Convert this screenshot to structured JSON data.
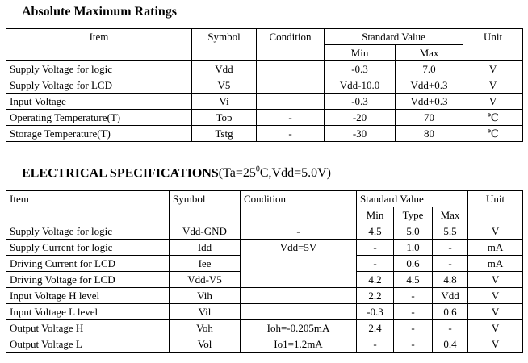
{
  "abs": {
    "title": "Absolute Maximum Ratings",
    "headers": {
      "item": "Item",
      "symbol": "Symbol",
      "condition": "Condition",
      "standard": "Standard Value",
      "min": "Min",
      "max": "Max",
      "unit": "Unit"
    },
    "rows": [
      {
        "item": "Supply Voltage for logic",
        "symbol": "Vdd",
        "condition": "",
        "min": "-0.3",
        "max": "7.0",
        "unit": "V"
      },
      {
        "item": "Supply Voltage for LCD",
        "symbol": "V5",
        "condition": "",
        "min": "Vdd-10.0",
        "max": "Vdd+0.3",
        "unit": "V"
      },
      {
        "item": "Input Voltage",
        "symbol": "Vi",
        "condition": "",
        "min": "-0.3",
        "max": "Vdd+0.3",
        "unit": "V"
      },
      {
        "item": "Operating Temperature(T)",
        "symbol": "Top",
        "condition": "-",
        "min": "-20",
        "max": "70",
        "unit": "℃"
      },
      {
        "item": "Storage Temperature(T)",
        "symbol": "Tstg",
        "condition": "-",
        "min": "-30",
        "max": "80",
        "unit": "℃"
      }
    ]
  },
  "elec": {
    "title": "ELECTRICAL SPECIFICATIONS",
    "title_suffix_a": "(Ta=25",
    "title_sup": "0",
    "title_suffix_b": "C,Vdd=5.0V)",
    "headers": {
      "item": "Item",
      "symbol": "Symbol",
      "condition": "Condition",
      "standard": "Standard Value",
      "min": "Min",
      "typ": "Type",
      "max": "Max",
      "unit": "Unit"
    },
    "rows": [
      {
        "item": "Supply Voltage for logic",
        "symbol": "Vdd-GND",
        "condition": "-",
        "min": "4.5",
        "typ": "5.0",
        "max": "5.5",
        "unit": "V"
      },
      {
        "item": "Supply Current for logic",
        "symbol": "Idd",
        "condition": "Vdd=5V",
        "min": "-",
        "typ": "1.0",
        "max": "-",
        "unit": "mA"
      },
      {
        "item": "Driving Current for LCD",
        "symbol": "Iee",
        "condition": "",
        "min": "-",
        "typ": "0.6",
        "max": "-",
        "unit": "mA"
      },
      {
        "item": "Driving Voltage for LCD",
        "symbol": "Vdd-V5",
        "condition": "",
        "min": "4.2",
        "typ": "4.5",
        "max": "4.8",
        "unit": "V"
      },
      {
        "item": "Input Voltage H level",
        "symbol": "Vih",
        "condition": "",
        "min": "2.2",
        "typ": "-",
        "max": "Vdd",
        "unit": "V"
      },
      {
        "item": "Input Voltage L level",
        "symbol": "Vil",
        "condition": "",
        "min": "-0.3",
        "typ": "-",
        "max": "0.6",
        "unit": "V"
      },
      {
        "item": "Output Voltage H",
        "symbol": "Voh",
        "condition": "Ioh=-0.205mA",
        "min": "2.4",
        "typ": "-",
        "max": "-",
        "unit": "V"
      },
      {
        "item": "Output Voltage L",
        "symbol": "Vol",
        "condition": "Io1=1.2mA",
        "min": "-",
        "typ": "-",
        "max": "0.4",
        "unit": "V"
      }
    ]
  }
}
